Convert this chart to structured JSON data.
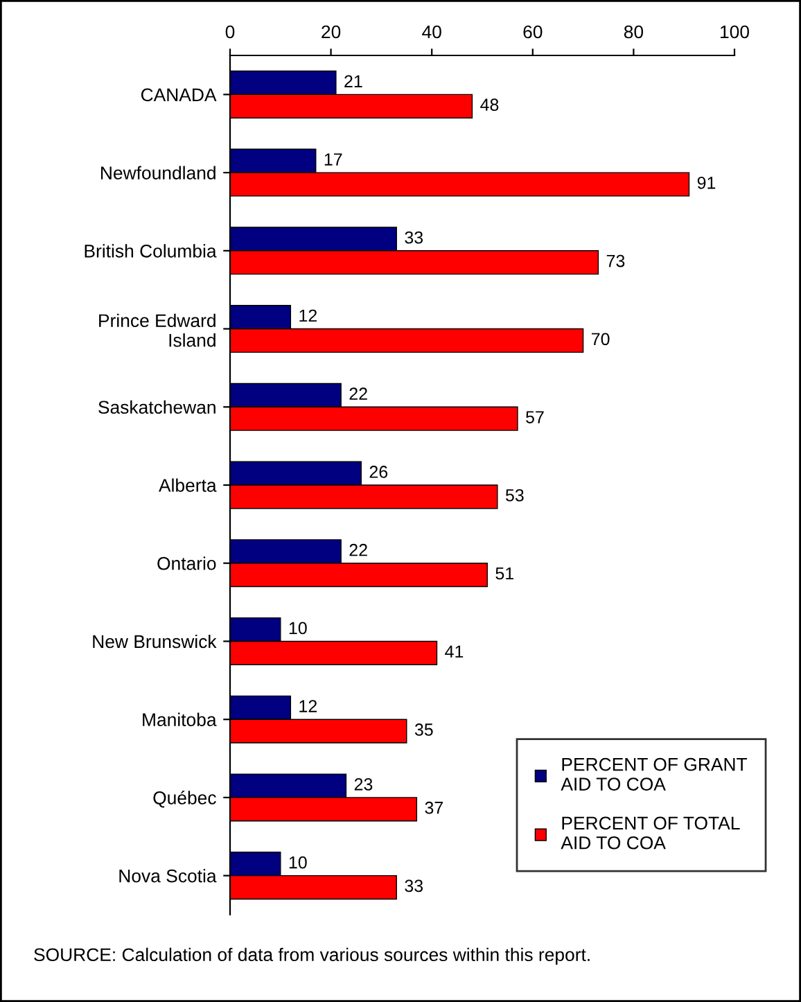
{
  "chart_data": {
    "type": "bar",
    "orientation": "horizontal",
    "categories": [
      "CANADA",
      "Newfoundland",
      "British Columbia",
      "Prince Edward\nIsland",
      "Saskatchewan",
      "Alberta",
      "Ontario",
      "New Brunswick",
      "Manitoba",
      "Québec",
      "Nova Scotia"
    ],
    "series": [
      {
        "name": "PERCENT OF GRANT\nAID TO COA",
        "color": "#000080",
        "values": [
          21,
          17,
          33,
          12,
          22,
          26,
          22,
          10,
          12,
          23,
          10
        ]
      },
      {
        "name": "PERCENT OF TOTAL\nAID TO COA",
        "color": "#ff0000",
        "values": [
          48,
          91,
          73,
          70,
          57,
          53,
          51,
          41,
          35,
          37,
          33
        ]
      }
    ],
    "xlim": [
      0,
      100
    ],
    "xticks": [
      0,
      20,
      40,
      60,
      80,
      100
    ],
    "grid": false,
    "legend": "bottom right",
    "data_labels": true,
    "annotations": [
      "SOURCE: Calculation of data from various sources within this report."
    ]
  }
}
